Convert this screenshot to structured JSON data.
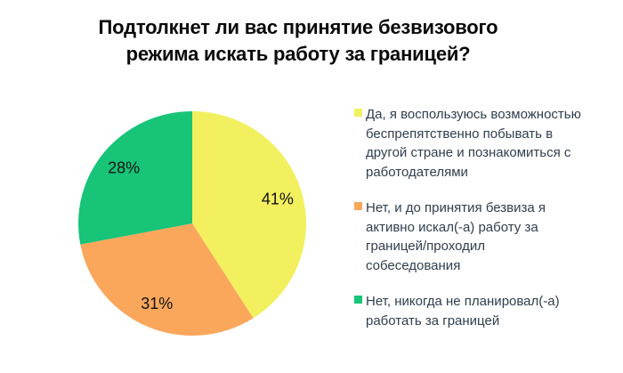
{
  "header": {
    "title": "Подтолкнет ли вас принятие безвизового\nрежима искать работу за границей?"
  },
  "chart_data": {
    "type": "pie",
    "title": "Подтолкнет ли вас принятие безвизового режима искать работу за границей?",
    "legend_position": "right",
    "start_angle_deg": 0,
    "direction": "clockwise",
    "slices": [
      {
        "id": "yes-will-use-opportunity",
        "value": 41,
        "display": "41%",
        "color": "#F2F05F",
        "label": "Да, я воспользуюсь возможностью\nбеспрепятственно побывать в\nдругой стране и познакомиться с\nработодателями"
      },
      {
        "id": "no-already-searched",
        "value": 31,
        "display": "31%",
        "color": "#FAA75C",
        "label": "Нет, и до принятия безвиза я\nактивно искал(-а) работу за\nграницей/проходил\nсобеседования"
      },
      {
        "id": "no-never-planned",
        "value": 28,
        "display": "28%",
        "color": "#17C478",
        "label": "Нет, никогда не планировал(-а)\nработать за границей"
      }
    ]
  },
  "colors": {
    "background": "#ffffff",
    "title_text": "#0a0a0a",
    "legend_text": "#2f3e4d",
    "pie_label_text": "#111111"
  }
}
